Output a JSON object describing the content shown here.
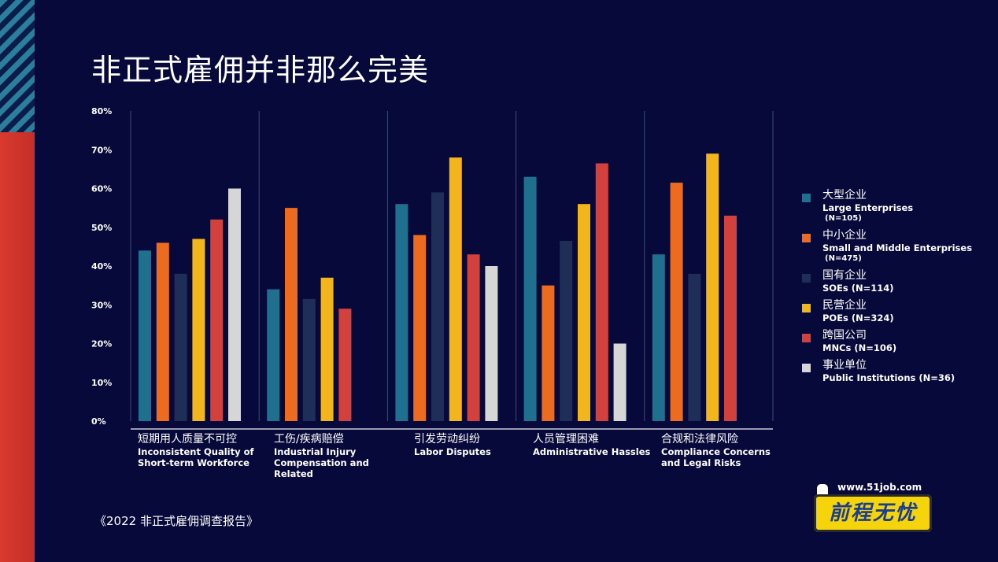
{
  "title": "非正式雇佣并非那么完美",
  "source": "《2022 非正式雇佣调查报告》",
  "logo": {
    "url": "www.51job.com",
    "text": "前程无忧"
  },
  "chart_data": {
    "type": "bar",
    "ylim": [
      0,
      80
    ],
    "yticks": [
      "0%",
      "10%",
      "20%",
      "30%",
      "40%",
      "50%",
      "60%",
      "70%",
      "80%"
    ],
    "categories": [
      {
        "zh": "短期用人质量不可控",
        "en": "Inconsistent Quality of Short-term Workforce"
      },
      {
        "zh": "工伤/疾病赔偿",
        "en": "Industrial Injury Compensation and Related"
      },
      {
        "zh": "引发劳动纠纷",
        "en": "Labor Disputes"
      },
      {
        "zh": "人员管理困难",
        "en": "Administrative Hassles"
      },
      {
        "zh": "合规和法律风险",
        "en": "Compliance Concerns and Legal Risks"
      }
    ],
    "series": [
      {
        "zh": "大型企业",
        "en": "Large Enterprises",
        "n": "(N=105)",
        "color": "#1f6f8f",
        "values": [
          44,
          34,
          56,
          63,
          43
        ]
      },
      {
        "zh": "中小企业",
        "en": "Small and Middle Enterprises",
        "n": "(N=475)",
        "color": "#ec6b1f",
        "values": [
          46,
          55,
          48,
          35,
          61.5
        ]
      },
      {
        "zh": "国有企业",
        "en": "SOEs (N=114)",
        "n": "",
        "color": "#1e2e57",
        "values": [
          38,
          31.5,
          59,
          46.5,
          38
        ]
      },
      {
        "zh": "民营企业",
        "en": "POEs (N=324)",
        "n": "",
        "color": "#f3b51c",
        "values": [
          47,
          37,
          68,
          56,
          69
        ]
      },
      {
        "zh": "跨国公司",
        "en": "MNCs (N=106)",
        "n": "",
        "color": "#d2413c",
        "values": [
          52,
          29,
          43,
          66.5,
          53
        ]
      },
      {
        "zh": "事业单位",
        "en": "Public Institutions (N=36)",
        "n": "",
        "color": "#d6d6d6",
        "values": [
          60,
          null,
          40,
          20,
          null
        ]
      }
    ]
  }
}
